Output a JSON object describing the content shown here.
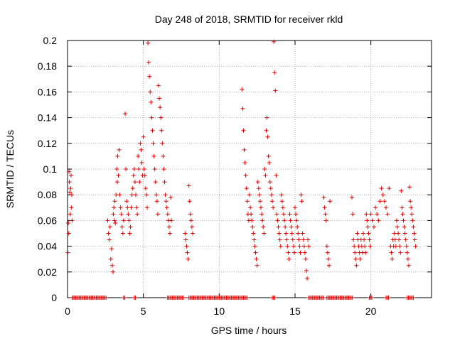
{
  "chart_data": {
    "type": "scatter",
    "title": "Day 248 of 2018, SRMTID for receiver rkld",
    "xlabel": "GPS time / hours",
    "ylabel": "SRMTID / TECUs",
    "xlim": [
      0,
      24
    ],
    "ylim": [
      0,
      0.2
    ],
    "x_ticks": [
      0,
      5,
      10,
      15,
      20
    ],
    "x_tick_labels": [
      "0",
      "5",
      "10",
      "15",
      "20"
    ],
    "y_ticks": [
      0,
      0.02,
      0.04,
      0.06,
      0.08,
      0.1,
      0.12,
      0.14,
      0.16,
      0.18,
      0.2
    ],
    "y_tick_labels": [
      "0",
      "0.02",
      "0.04",
      "0.06",
      "0.08",
      "0.1",
      "0.12",
      "0.14",
      "0.16",
      "0.18",
      "0.2"
    ],
    "grid": true,
    "marker": "+",
    "color": "#dd0000",
    "series": [
      {
        "name": "SRMTID",
        "points": [
          [
            0.02,
            0.035
          ],
          [
            0.05,
            0.058
          ],
          [
            0.08,
            0.05
          ],
          [
            0.1,
            0.098
          ],
          [
            0.12,
            0.09
          ],
          [
            0.15,
            0.082
          ],
          [
            0.18,
            0.065
          ],
          [
            0.2,
            0.085
          ],
          [
            0.23,
            0.095
          ],
          [
            0.25,
            0.07
          ],
          [
            0.28,
            0.08
          ],
          [
            0.3,
            0.06
          ],
          [
            2.65,
            0.06
          ],
          [
            2.7,
            0.05
          ],
          [
            2.75,
            0.045
          ],
          [
            2.8,
            0.055
          ],
          [
            2.85,
            0.03
          ],
          [
            2.9,
            0.038
          ],
          [
            2.95,
            0.025
          ],
          [
            3.0,
            0.02
          ],
          [
            3.02,
            0.065
          ],
          [
            3.05,
            0.07
          ],
          [
            3.1,
            0.06
          ],
          [
            3.12,
            0.075
          ],
          [
            3.15,
            0.058
          ],
          [
            3.2,
            0.08
          ],
          [
            3.25,
            0.1
          ],
          [
            3.28,
            0.09
          ],
          [
            3.3,
            0.11
          ],
          [
            3.35,
            0.095
          ],
          [
            3.4,
            0.115
          ],
          [
            3.45,
            0.08
          ],
          [
            3.5,
            0.07
          ],
          [
            3.55,
            0.065
          ],
          [
            3.6,
            0.055
          ],
          [
            3.65,
            0.05
          ],
          [
            3.7,
            0.06
          ],
          [
            3.8,
            0.143
          ],
          [
            3.85,
            0.1
          ],
          [
            3.9,
            0.075
          ],
          [
            3.95,
            0.07
          ],
          [
            4.0,
            0.065
          ],
          [
            4.05,
            0.06
          ],
          [
            4.1,
            0.05
          ],
          [
            4.15,
            0.055
          ],
          [
            4.2,
            0.07
          ],
          [
            4.25,
            0.08
          ],
          [
            4.3,
            0.085
          ],
          [
            4.35,
            0.095
          ],
          [
            4.4,
            0.1
          ],
          [
            4.45,
            0.09
          ],
          [
            4.5,
            0.08
          ],
          [
            4.55,
            0.07
          ],
          [
            4.6,
            0.065
          ],
          [
            4.65,
            0.11
          ],
          [
            4.7,
            0.1
          ],
          [
            4.75,
            0.09
          ],
          [
            4.8,
            0.12
          ],
          [
            4.85,
            0.115
          ],
          [
            4.9,
            0.105
          ],
          [
            4.95,
            0.095
          ],
          [
            5.0,
            0.125
          ],
          [
            5.05,
            0.1
          ],
          [
            5.1,
            0.095
          ],
          [
            5.15,
            0.085
          ],
          [
            5.2,
            0.08
          ],
          [
            5.25,
            0.07
          ],
          [
            5.3,
            0.198
          ],
          [
            5.35,
            0.183
          ],
          [
            5.4,
            0.172
          ],
          [
            5.45,
            0.16
          ],
          [
            5.5,
            0.152
          ],
          [
            5.55,
            0.14
          ],
          [
            5.6,
            0.13
          ],
          [
            5.65,
            0.12
          ],
          [
            5.7,
            0.11
          ],
          [
            5.75,
            0.1
          ],
          [
            5.8,
            0.09
          ],
          [
            5.85,
            0.08
          ],
          [
            5.9,
            0.075
          ],
          [
            5.95,
            0.065
          ],
          [
            6.0,
            0.165
          ],
          [
            6.05,
            0.155
          ],
          [
            6.1,
            0.148
          ],
          [
            6.15,
            0.14
          ],
          [
            6.2,
            0.13
          ],
          [
            6.25,
            0.12
          ],
          [
            6.3,
            0.11
          ],
          [
            6.35,
            0.1
          ],
          [
            6.4,
            0.09
          ],
          [
            6.45,
            0.08
          ],
          [
            6.5,
            0.075
          ],
          [
            6.55,
            0.07
          ],
          [
            6.6,
            0.065
          ],
          [
            6.65,
            0.06
          ],
          [
            6.7,
            0.055
          ],
          [
            6.75,
            0.05
          ],
          [
            6.8,
            0.078
          ],
          [
            6.85,
            0.06
          ],
          [
            7.75,
            0.05
          ],
          [
            7.8,
            0.045
          ],
          [
            7.85,
            0.04
          ],
          [
            7.9,
            0.035
          ],
          [
            7.95,
            0.03
          ],
          [
            8.0,
            0.087
          ],
          [
            8.05,
            0.075
          ],
          [
            8.1,
            0.065
          ],
          [
            8.15,
            0.06
          ],
          [
            8.2,
            0.055
          ],
          [
            8.25,
            0.05
          ],
          [
            11.5,
            0.162
          ],
          [
            11.55,
            0.147
          ],
          [
            11.6,
            0.13
          ],
          [
            11.65,
            0.115
          ],
          [
            11.7,
            0.105
          ],
          [
            11.75,
            0.095
          ],
          [
            11.8,
            0.085
          ],
          [
            11.85,
            0.075
          ],
          [
            11.9,
            0.065
          ],
          [
            11.95,
            0.06
          ],
          [
            12.0,
            0.08
          ],
          [
            12.05,
            0.07
          ],
          [
            12.1,
            0.065
          ],
          [
            12.15,
            0.06
          ],
          [
            12.2,
            0.055
          ],
          [
            12.25,
            0.05
          ],
          [
            12.3,
            0.045
          ],
          [
            12.35,
            0.04
          ],
          [
            12.4,
            0.035
          ],
          [
            12.45,
            0.03
          ],
          [
            12.5,
            0.025
          ],
          [
            12.55,
            0.09
          ],
          [
            12.6,
            0.085
          ],
          [
            12.65,
            0.08
          ],
          [
            12.7,
            0.075
          ],
          [
            12.75,
            0.07
          ],
          [
            12.8,
            0.065
          ],
          [
            12.85,
            0.06
          ],
          [
            12.9,
            0.055
          ],
          [
            12.95,
            0.05
          ],
          [
            13.0,
            0.1
          ],
          [
            13.05,
            0.095
          ],
          [
            13.1,
            0.13
          ],
          [
            13.15,
            0.14
          ],
          [
            13.2,
            0.125
          ],
          [
            13.25,
            0.11
          ],
          [
            13.3,
            0.105
          ],
          [
            13.35,
            0.09
          ],
          [
            13.4,
            0.085
          ],
          [
            13.45,
            0.08
          ],
          [
            13.5,
            0.075
          ],
          [
            13.55,
            0.07
          ],
          [
            13.6,
            0.199
          ],
          [
            13.65,
            0.175
          ],
          [
            13.7,
            0.161
          ],
          [
            13.75,
            0.095
          ],
          [
            13.8,
            0.065
          ],
          [
            13.85,
            0.06
          ],
          [
            13.9,
            0.055
          ],
          [
            13.95,
            0.05
          ],
          [
            14.0,
            0.045
          ],
          [
            14.05,
            0.04
          ],
          [
            14.1,
            0.08
          ],
          [
            14.15,
            0.075
          ],
          [
            14.2,
            0.07
          ],
          [
            14.25,
            0.065
          ],
          [
            14.3,
            0.06
          ],
          [
            14.35,
            0.055
          ],
          [
            14.4,
            0.05
          ],
          [
            14.45,
            0.045
          ],
          [
            14.5,
            0.04
          ],
          [
            14.55,
            0.035
          ],
          [
            14.6,
            0.03
          ],
          [
            14.65,
            0.065
          ],
          [
            14.7,
            0.06
          ],
          [
            14.75,
            0.055
          ],
          [
            14.8,
            0.05
          ],
          [
            14.85,
            0.045
          ],
          [
            14.9,
            0.04
          ],
          [
            14.95,
            0.035
          ],
          [
            15.0,
            0.07
          ],
          [
            15.05,
            0.065
          ],
          [
            15.1,
            0.06
          ],
          [
            15.15,
            0.055
          ],
          [
            15.2,
            0.05
          ],
          [
            15.25,
            0.045
          ],
          [
            15.3,
            0.04
          ],
          [
            15.35,
            0.035
          ],
          [
            15.4,
            0.08
          ],
          [
            15.45,
            0.075
          ],
          [
            15.5,
            0.05
          ],
          [
            15.55,
            0.045
          ],
          [
            15.6,
            0.04
          ],
          [
            15.65,
            0.035
          ],
          [
            15.7,
            0.03
          ],
          [
            15.75,
            0.021
          ],
          [
            15.8,
            0.015
          ],
          [
            15.85,
            0.045
          ],
          [
            15.9,
            0.04
          ],
          [
            16.9,
            0.078
          ],
          [
            16.95,
            0.07
          ],
          [
            17.0,
            0.065
          ],
          [
            17.05,
            0.06
          ],
          [
            17.1,
            0.04
          ],
          [
            17.15,
            0.035
          ],
          [
            17.2,
            0.03
          ],
          [
            17.25,
            0.025
          ],
          [
            17.3,
            0.075
          ],
          [
            18.75,
            0.078
          ],
          [
            18.8,
            0.065
          ],
          [
            18.85,
            0.045
          ],
          [
            18.9,
            0.04
          ],
          [
            18.95,
            0.035
          ],
          [
            19.0,
            0.03
          ],
          [
            19.05,
            0.025
          ],
          [
            19.1,
            0.05
          ],
          [
            19.15,
            0.045
          ],
          [
            19.2,
            0.04
          ],
          [
            19.25,
            0.035
          ],
          [
            19.3,
            0.03
          ],
          [
            19.35,
            0.045
          ],
          [
            19.4,
            0.04
          ],
          [
            19.45,
            0.035
          ],
          [
            19.5,
            0.05
          ],
          [
            19.55,
            0.045
          ],
          [
            19.6,
            0.04
          ],
          [
            19.65,
            0.035
          ],
          [
            19.7,
            0.065
          ],
          [
            19.75,
            0.06
          ],
          [
            19.8,
            0.055
          ],
          [
            19.85,
            0.05
          ],
          [
            19.9,
            0.045
          ],
          [
            19.95,
            0.04
          ],
          [
            20.0,
            0.065
          ],
          [
            20.1,
            0.06
          ],
          [
            20.2,
            0.055
          ],
          [
            20.3,
            0.07
          ],
          [
            20.4,
            0.065
          ],
          [
            20.5,
            0.06
          ],
          [
            20.6,
            0.075
          ],
          [
            20.7,
            0.085
          ],
          [
            20.8,
            0.08
          ],
          [
            20.9,
            0.075
          ],
          [
            21.0,
            0.07
          ],
          [
            21.1,
            0.065
          ],
          [
            21.2,
            0.085
          ],
          [
            21.3,
            0.04
          ],
          [
            21.35,
            0.035
          ],
          [
            21.4,
            0.03
          ],
          [
            21.45,
            0.045
          ],
          [
            21.5,
            0.04
          ],
          [
            21.55,
            0.05
          ],
          [
            21.6,
            0.045
          ],
          [
            21.65,
            0.04
          ],
          [
            21.7,
            0.06
          ],
          [
            21.75,
            0.055
          ],
          [
            21.8,
            0.05
          ],
          [
            21.85,
            0.045
          ],
          [
            21.9,
            0.04
          ],
          [
            21.95,
            0.035
          ],
          [
            22.0,
            0.083
          ],
          [
            22.05,
            0.07
          ],
          [
            22.1,
            0.065
          ],
          [
            22.15,
            0.06
          ],
          [
            22.2,
            0.055
          ],
          [
            22.25,
            0.05
          ],
          [
            22.3,
            0.045
          ],
          [
            22.35,
            0.04
          ],
          [
            22.4,
            0.035
          ],
          [
            22.45,
            0.03
          ],
          [
            22.5,
            0.025
          ],
          [
            22.55,
            0.086
          ],
          [
            22.6,
            0.075
          ],
          [
            22.65,
            0.07
          ],
          [
            22.7,
            0.065
          ],
          [
            22.75,
            0.06
          ],
          [
            22.8,
            0.055
          ],
          [
            22.85,
            0.05
          ],
          [
            22.9,
            0.045
          ],
          [
            22.95,
            0.04
          ]
        ],
        "zero_ranges": [
          [
            0.3,
            2.6
          ],
          [
            3.7,
            3.8
          ],
          [
            4.4,
            4.5
          ],
          [
            6.6,
            7.7
          ],
          [
            8.0,
            11.9
          ],
          [
            13.5,
            13.7
          ],
          [
            15.9,
            16.9
          ],
          [
            17.1,
            18.8
          ],
          [
            19.9,
            20.1
          ],
          [
            21.0,
            21.2
          ],
          [
            22.4,
            22.8
          ]
        ],
        "zero_step": 0.08
      }
    ]
  }
}
